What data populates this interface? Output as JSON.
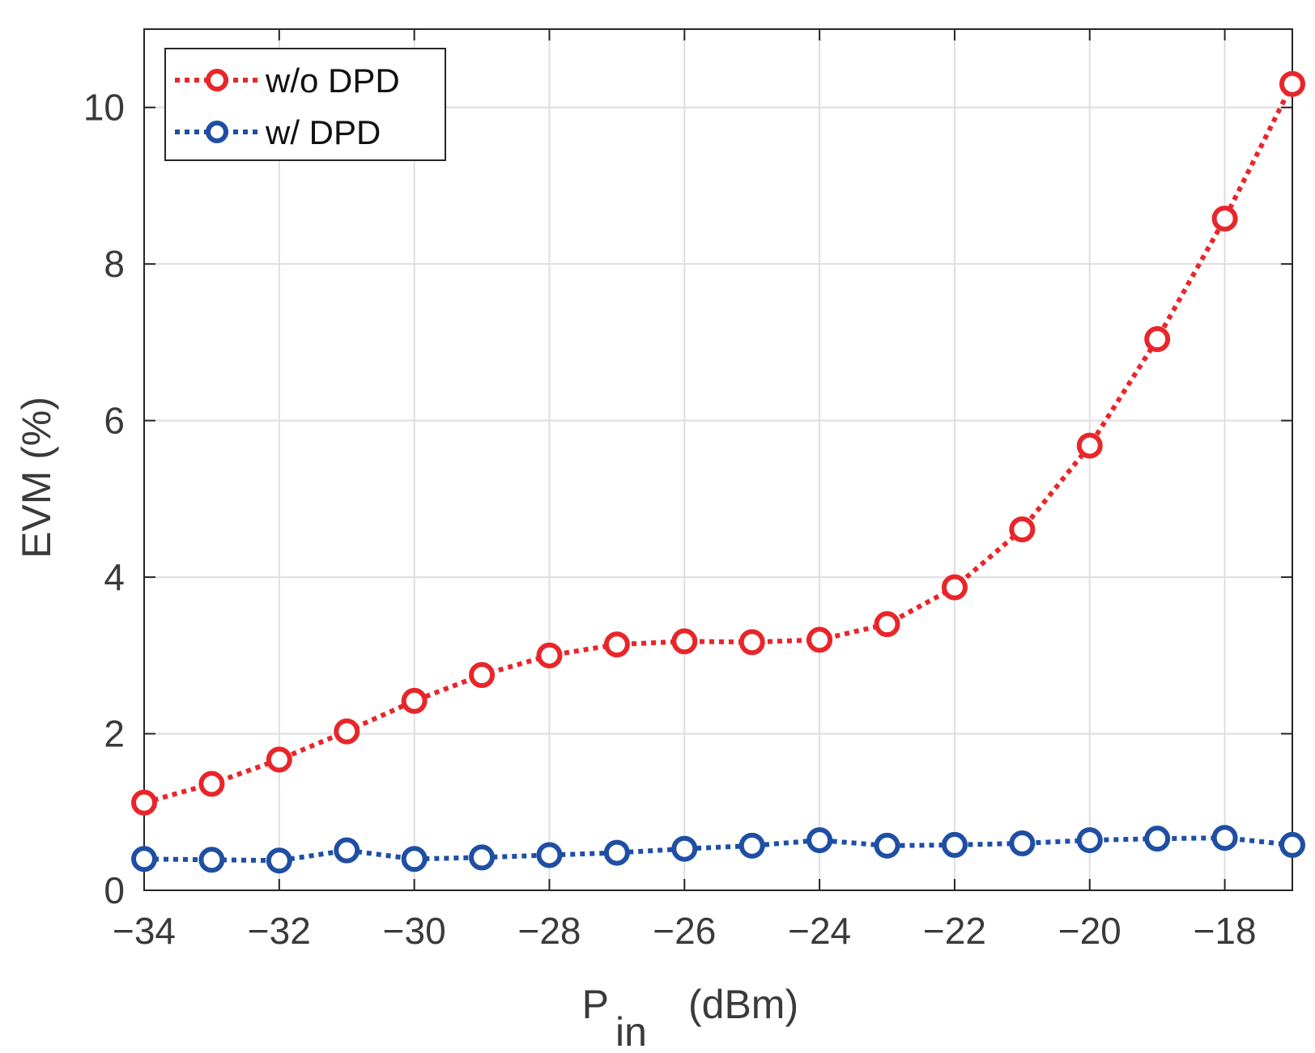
{
  "chart_data": {
    "type": "line",
    "title": "",
    "xlabel_main": "P",
    "xlabel_sub": "in",
    "xlabel_unit": "(dBm)",
    "ylabel": "EVM (%)",
    "xlim": [
      -34,
      -17
    ],
    "ylim": [
      0,
      11
    ],
    "xticks": [
      -34,
      -32,
      -30,
      -28,
      -26,
      -24,
      -22,
      -20,
      -18
    ],
    "xtick_labels": [
      "−34",
      "−32",
      "−30",
      "−28",
      "−26",
      "−24",
      "−22",
      "−20",
      "−18"
    ],
    "yticks": [
      0,
      2,
      4,
      6,
      8,
      10
    ],
    "ytick_labels": [
      "0",
      "2",
      "4",
      "6",
      "8",
      "10"
    ],
    "grid": true,
    "legend_position": "top-left",
    "x": [
      -34,
      -33,
      -32,
      -31,
      -30,
      -29,
      -28,
      -27,
      -26,
      -25,
      -24,
      -23,
      -22,
      -21,
      -20,
      -19,
      -18,
      -17
    ],
    "series": [
      {
        "name": "w/o DPD",
        "color": "#e8262a",
        "values": [
          1.12,
          1.36,
          1.67,
          2.03,
          2.42,
          2.75,
          3.0,
          3.14,
          3.18,
          3.17,
          3.2,
          3.4,
          3.87,
          4.61,
          5.68,
          7.04,
          8.58,
          10.3
        ]
      },
      {
        "name": "w/ DPD",
        "color": "#1f4fa3",
        "values": [
          0.4,
          0.39,
          0.38,
          0.51,
          0.4,
          0.42,
          0.45,
          0.48,
          0.53,
          0.57,
          0.64,
          0.57,
          0.58,
          0.6,
          0.64,
          0.66,
          0.67,
          0.58
        ]
      }
    ]
  }
}
